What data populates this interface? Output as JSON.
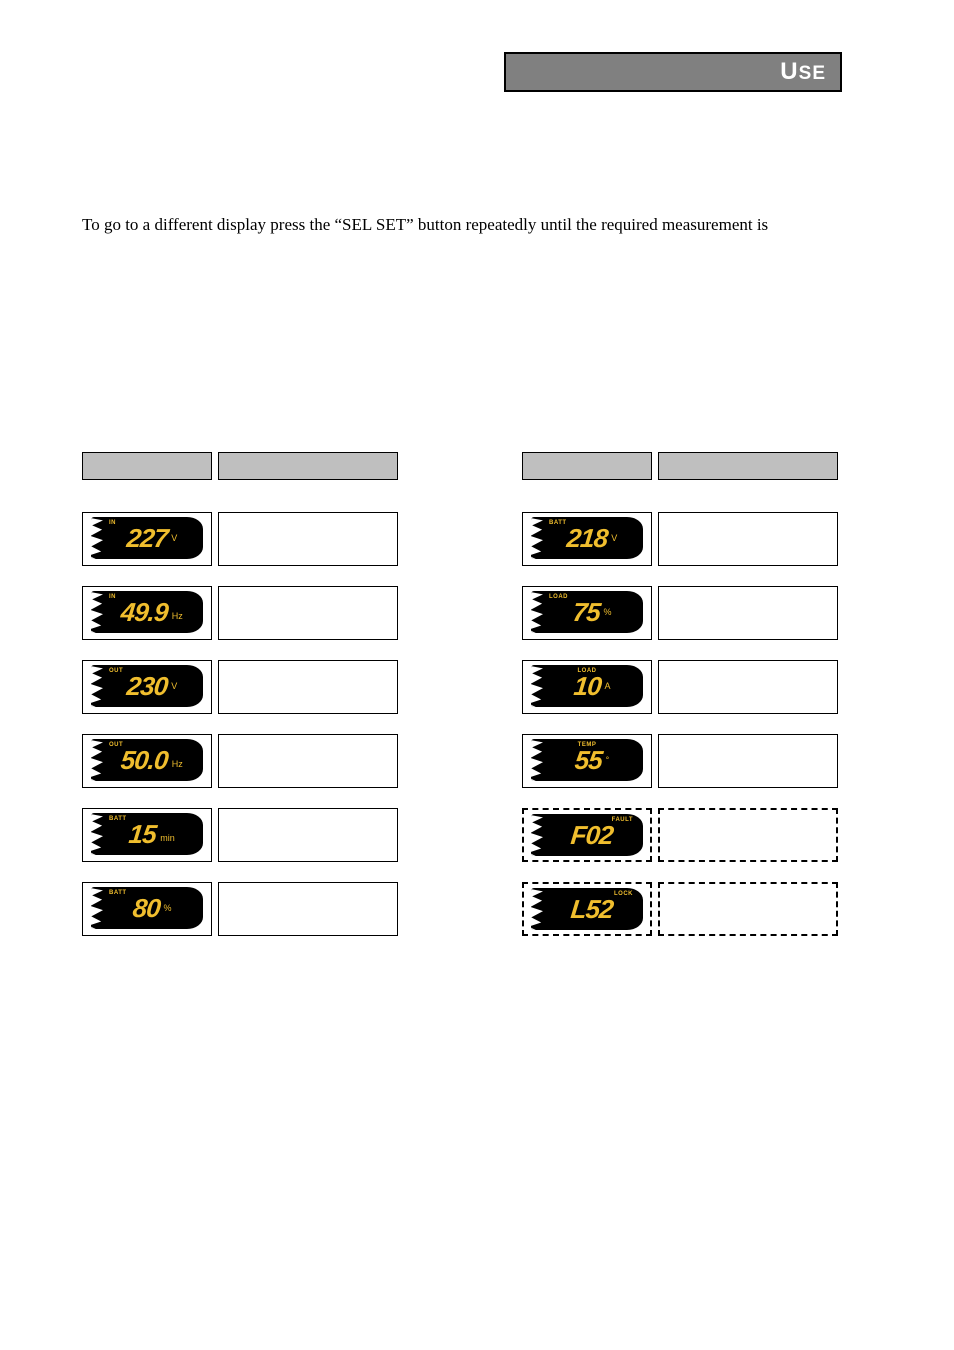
{
  "header": {
    "title_main": "U",
    "title_rest": "SE"
  },
  "intro": "To go to a different display press the “SEL SET” button repeatedly until the required measurement is",
  "left_rows": [
    {
      "label": "IN",
      "label_pos": "topleft",
      "value": "227",
      "unit": "V",
      "unit_pos": "mid"
    },
    {
      "label": "IN",
      "label_pos": "topleft",
      "value": "49.9",
      "unit": "Hz",
      "unit_pos": "end"
    },
    {
      "label": "OUT",
      "label_pos": "topleft",
      "value": "230",
      "unit": "V",
      "unit_pos": "mid"
    },
    {
      "label": "OUT",
      "label_pos": "topleft",
      "value": "50.0",
      "unit": "Hz",
      "unit_pos": "end"
    },
    {
      "label": "BATT",
      "label_pos": "topleft",
      "value": "15",
      "unit": "min",
      "unit_pos": "end"
    },
    {
      "label": "BATT",
      "label_pos": "topleft",
      "value": "80",
      "unit": "%",
      "unit_pos": "mid"
    }
  ],
  "right_rows": [
    {
      "label": "BATT",
      "label_pos": "topleft",
      "value": "218",
      "unit": "V",
      "unit_pos": "mid",
      "dashed": false
    },
    {
      "label": "LOAD",
      "label_pos": "topleft",
      "value": "75",
      "unit": "%",
      "unit_pos": "mid",
      "dashed": false
    },
    {
      "label": "LOAD",
      "label_pos": "topmid",
      "value": "10",
      "unit": "A",
      "unit_pos": "mid",
      "dashed": false
    },
    {
      "label": "TEMP",
      "label_pos": "topmid",
      "value": "55",
      "unit": "°",
      "unit_pos": "mid",
      "dashed": false
    },
    {
      "label": "FAULT",
      "label_pos": "topright",
      "value": "F02",
      "unit": "",
      "unit_pos": "",
      "dashed": true
    },
    {
      "label": "LOCK",
      "label_pos": "topright",
      "value": "L52",
      "unit": "",
      "unit_pos": "",
      "dashed": true
    }
  ],
  "colors": {
    "lcd_bg": "#000000",
    "lcd_fg": "#f0be2e",
    "header_bg": "#808080",
    "cell_bg": "#bfbfbf"
  }
}
